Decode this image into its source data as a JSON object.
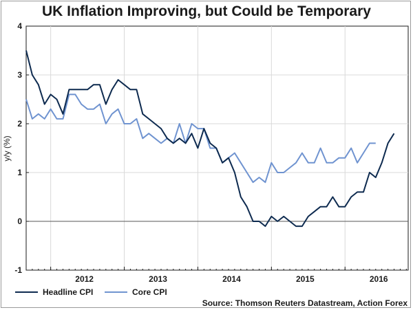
{
  "chart_data": {
    "type": "line",
    "title": "UK Inflation Improving, but Could be Temporary",
    "ylabel": "y/y (%)",
    "xlabel": "",
    "ylim": [
      -1,
      4
    ],
    "yticks": [
      "4",
      "3",
      "2",
      "1",
      "0",
      "-1"
    ],
    "year_labels": [
      "2012",
      "2013",
      "2014",
      "2015",
      "2016"
    ],
    "start": "2011-09",
    "grid": true,
    "legend_position": "bottom-left",
    "series": [
      {
        "name": "Headline CPI",
        "color": "#0d2a4f",
        "values": [
          3.5,
          3.0,
          2.8,
          2.4,
          2.6,
          2.5,
          2.2,
          2.7,
          2.7,
          2.7,
          2.7,
          2.8,
          2.8,
          2.4,
          2.7,
          2.9,
          2.8,
          2.7,
          2.7,
          2.2,
          2.1,
          2.0,
          1.9,
          1.7,
          1.6,
          1.7,
          1.6,
          1.8,
          1.5,
          1.9,
          1.6,
          1.5,
          1.2,
          1.3,
          1.0,
          0.5,
          0.3,
          0.0,
          0.0,
          -0.1,
          0.1,
          0.0,
          0.1,
          0.0,
          -0.1,
          -0.1,
          0.1,
          0.2,
          0.3,
          0.3,
          0.5,
          0.3,
          0.3,
          0.5,
          0.6,
          0.6,
          1.0,
          0.9,
          1.2,
          1.6,
          1.8
        ]
      },
      {
        "name": "Core CPI",
        "color": "#6f93d0",
        "values": [
          2.5,
          2.1,
          2.2,
          2.1,
          2.3,
          2.1,
          2.1,
          2.6,
          2.6,
          2.4,
          2.3,
          2.3,
          2.4,
          2.0,
          2.2,
          2.3,
          2.0,
          2.0,
          2.1,
          1.7,
          1.8,
          1.7,
          1.6,
          1.7,
          1.6,
          2.0,
          1.6,
          2.0,
          1.9,
          1.9,
          1.5,
          1.5,
          1.2,
          1.3,
          1.4,
          1.2,
          1.0,
          0.8,
          0.9,
          0.8,
          1.2,
          1.0,
          1.0,
          1.1,
          1.2,
          1.4,
          1.2,
          1.2,
          1.5,
          1.2,
          1.2,
          1.3,
          1.3,
          1.5,
          1.2,
          1.4,
          1.6,
          1.6
        ]
      }
    ],
    "source": "Source: Thomson Reuters Datastream, Action Forex"
  }
}
